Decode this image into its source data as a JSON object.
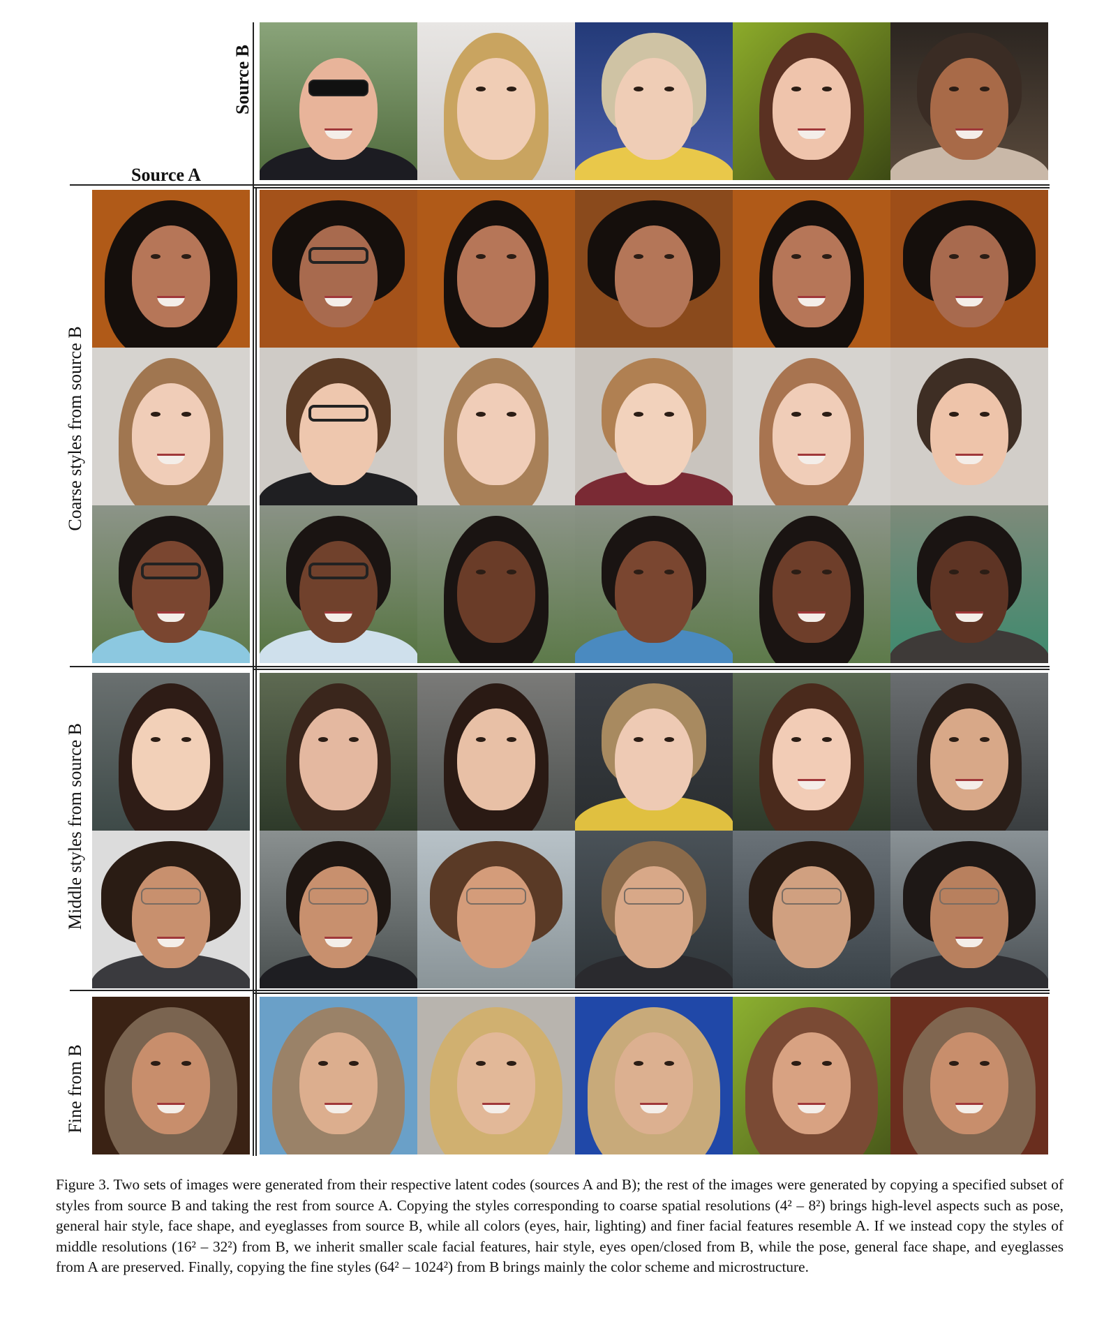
{
  "labels": {
    "source_a": "Source A",
    "source_b": "Source B",
    "coarse": "Coarse styles from source B",
    "middle": "Middle styles from source B",
    "fine": "Fine from B"
  },
  "caption": {
    "lead": "Figure 3.",
    "text": "Two sets of images were generated from their respective latent codes (sources A and B); the rest of the images were generated by copying a specified subset of styles from source B and taking the rest from source A. Copying the styles corresponding to coarse spatial resolutions (4² – 8²) brings high-level aspects such as pose, general hair style, face shape, and eyeglasses from source B, while all colors (eyes, hair, lighting) and finer facial features resemble A. If we instead copy the styles of middle resolutions (16² – 32²) from B, we inherit smaller scale facial features, hair style, eyes open/closed from B, while the pose, general face shape, and eyeglasses from A are preserved. Finally, copying the fine styles (64² – 1024²) from B brings mainly the color scheme and microstructure."
  }
}
